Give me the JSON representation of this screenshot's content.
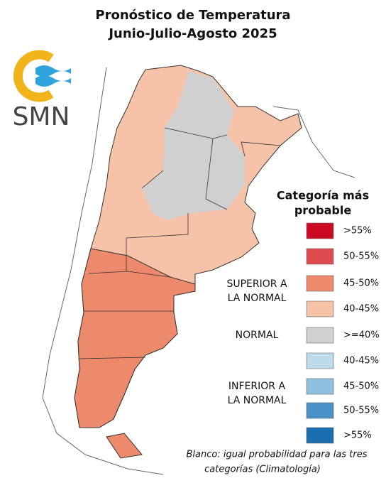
{
  "header": {
    "title_lines": [
      "Pronóstico de Temperatura",
      "Junio-Julio-Agosto 2025"
    ]
  },
  "logo": {
    "text": "SMN"
  },
  "legend": {
    "title_lines": [
      "Categoría más",
      "probable"
    ],
    "items": [
      {
        "label": ">55%",
        "color": "#cc0a24"
      },
      {
        "label": "50-55%",
        "color": "#de4b4f"
      },
      {
        "label": "45-50%",
        "color": "#ee8a6c"
      },
      {
        "label": "40-45%",
        "color": "#f6c2a8"
      },
      {
        "label": ">=40%",
        "color": "#d0d0d0"
      },
      {
        "label": "40-45%",
        "color": "#bcdbeb"
      },
      {
        "label": "45-50%",
        "color": "#8fc0e0"
      },
      {
        "label": "50-55%",
        "color": "#4a92c8"
      },
      {
        "label": ">55%",
        "color": "#1b6fb0"
      }
    ],
    "groups": [
      {
        "lines": [
          "SUPERIOR A",
          "LA NORMAL"
        ]
      },
      {
        "lines": [
          "NORMAL"
        ]
      },
      {
        "lines": [
          "INFERIOR A",
          "LA NORMAL"
        ]
      }
    ]
  },
  "footnote": {
    "lines": [
      "Blanco: igual probabilidad para las tres",
      "categorías (Climatología)"
    ]
  }
}
